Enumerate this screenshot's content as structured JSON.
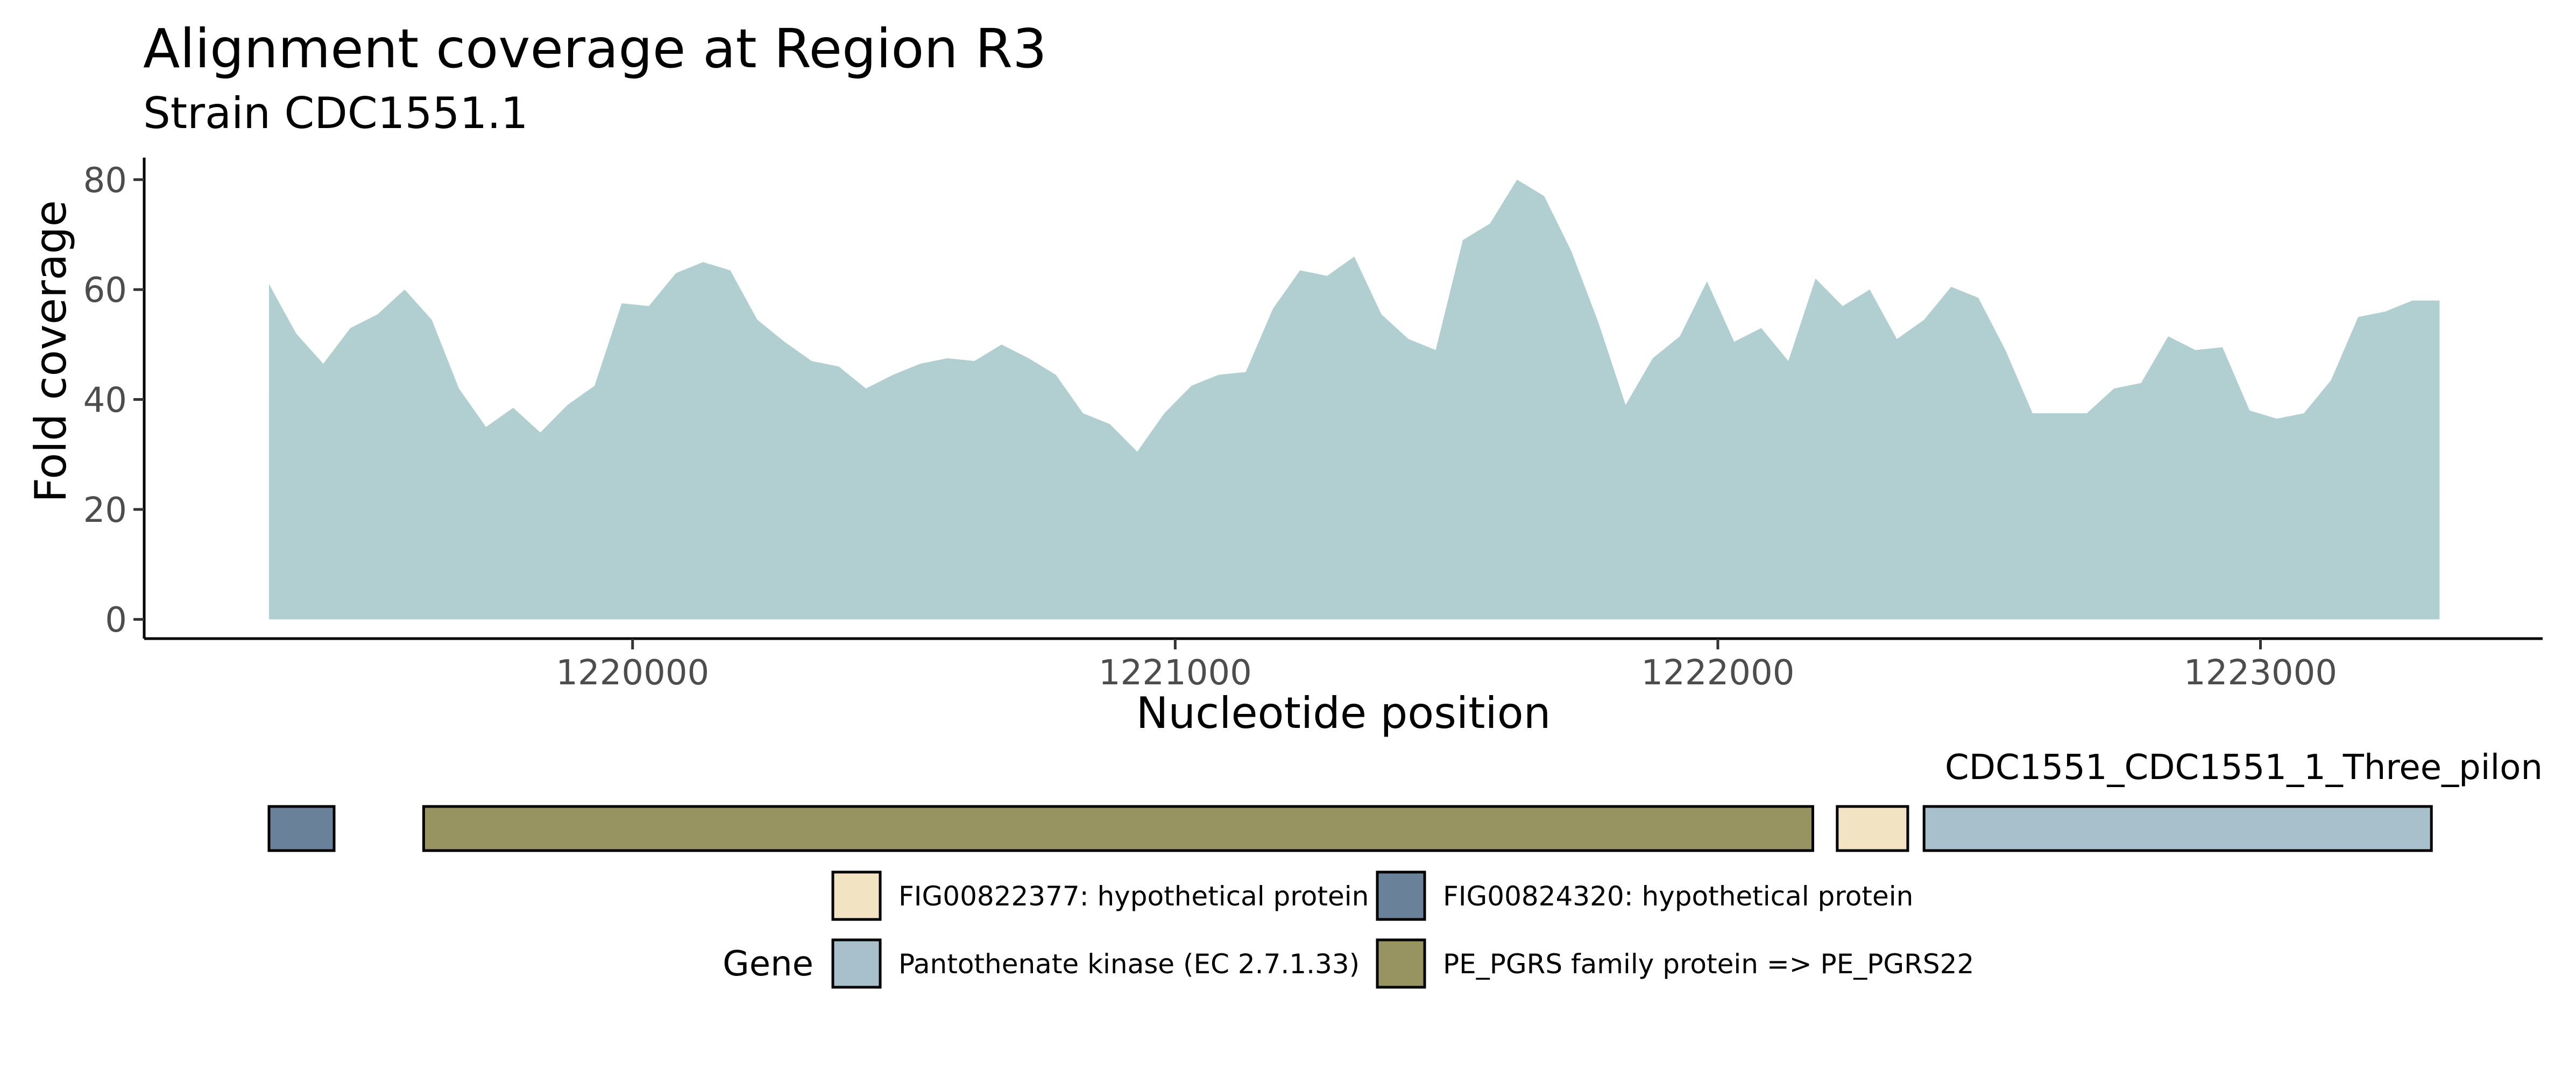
{
  "chart_data": {
    "type": "area",
    "title": "Alignment coverage at Region R3",
    "subtitle": "Strain CDC1551.1",
    "xlabel": "Nucleotide position",
    "ylabel": "Fold coverage",
    "xlim": [
      1219100,
      1223520
    ],
    "ylim": [
      -3.5,
      84
    ],
    "x_ticks": [
      1220000,
      1221000,
      1222000,
      1223000
    ],
    "x_tick_labels": [
      "1220000",
      "1221000",
      "1222000",
      "1223000"
    ],
    "y_ticks": [
      0,
      20,
      40,
      60,
      80
    ],
    "y_tick_labels": [
      "0",
      "20",
      "40",
      "60",
      "80"
    ],
    "grid": false,
    "fill_color": "#b1cfd1",
    "x": [
      1219330,
      1219380,
      1219430,
      1219480,
      1219530,
      1219580,
      1219630,
      1219680,
      1219730,
      1219780,
      1219830,
      1219880,
      1219930,
      1219980,
      1220030,
      1220080,
      1220130,
      1220180,
      1220230,
      1220280,
      1220330,
      1220380,
      1220430,
      1220480,
      1220530,
      1220580,
      1220630,
      1220680,
      1220730,
      1220780,
      1220830,
      1220880,
      1220930,
      1220980,
      1221030,
      1221080,
      1221130,
      1221180,
      1221230,
      1221280,
      1221330,
      1221380,
      1221430,
      1221480,
      1221530,
      1221580,
      1221630,
      1221680,
      1221730,
      1221780,
      1221830,
      1221880,
      1221930,
      1221980,
      1222030,
      1222080,
      1222130,
      1222180,
      1222230,
      1222280,
      1222330,
      1222380,
      1222430,
      1222480,
      1222530,
      1222580,
      1222630,
      1222680,
      1222730,
      1222780,
      1222830,
      1222880,
      1222930,
      1222980,
      1223030,
      1223080,
      1223130,
      1223180,
      1223230,
      1223280,
      1223330
    ],
    "y": [
      61,
      52,
      46.5,
      53,
      55.5,
      60,
      54.5,
      42,
      35,
      38.5,
      34,
      39,
      42.5,
      57.5,
      57,
      63,
      65,
      63.5,
      54.5,
      50.5,
      47,
      46,
      42,
      44.5,
      46.5,
      47.5,
      47,
      50,
      47.5,
      44.5,
      37.5,
      35.5,
      30.5,
      37.5,
      42.5,
      44.5,
      45,
      56.5,
      63.5,
      62.5,
      66,
      55.5,
      51,
      49,
      69,
      72,
      80,
      77,
      67,
      54,
      39,
      47.5,
      51.5,
      61.5,
      50.5,
      53,
      47,
      62,
      57,
      60,
      51,
      54.5,
      60.5,
      58.5,
      49,
      37.5,
      37.5,
      37.5,
      42,
      43,
      51.5,
      49,
      49.5,
      38,
      36.5,
      37.5,
      43.5,
      55,
      56,
      58,
      58
    ],
    "gene_track": {
      "label": "CDC1551_CDC1551_1_Three_pilon",
      "genes": [
        {
          "start": 1219330,
          "end": 1219450,
          "product": "FIG00824320: hypothetical protein"
        },
        {
          "start": 1219615,
          "end": 1222175,
          "product": "PE_PGRS family protein => PE_PGRS22"
        },
        {
          "start": 1222220,
          "end": 1222350,
          "product": "FIG00822377: hypothetical protein"
        },
        {
          "start": 1222380,
          "end": 1223315,
          "product": "Pantothenate kinase (EC 2.7.1.33)"
        }
      ]
    },
    "legend": {
      "title": "Gene",
      "position": "bottom",
      "entries": [
        {
          "name": "FIG00822377: hypothetical protein",
          "color": "#f2e4c3"
        },
        {
          "name": "FIG00824320: hypothetical protein",
          "color": "#6a8299"
        },
        {
          "name": "Pantothenate kinase (EC 2.7.1.33)",
          "color": "#a8bfcc"
        },
        {
          "name": "PE_PGRS family protein => PE_PGRS22",
          "color": "#989462"
        }
      ]
    }
  }
}
